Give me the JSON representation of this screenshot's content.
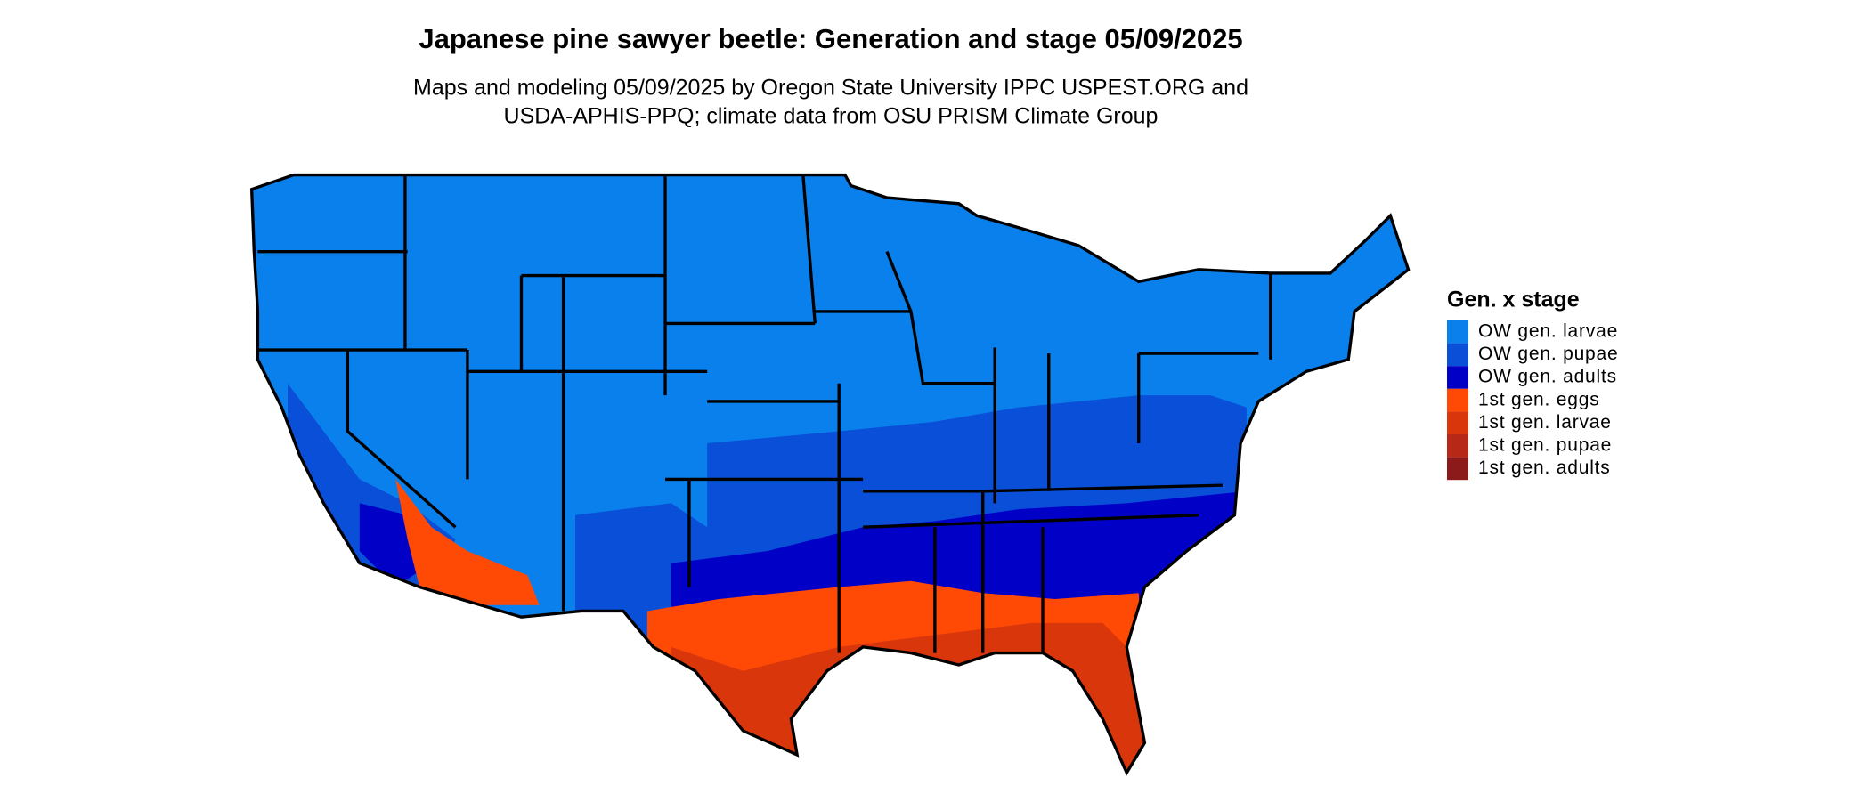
{
  "title": "Japanese pine sawyer beetle: Generation and stage 05/09/2025",
  "subtitle": [
    "Maps and modeling 05/09/2025 by Oregon State University IPPC USPEST.ORG and",
    "USDA-APHIS-PPQ; climate data from OSU PRISM Climate Group"
  ],
  "legend": {
    "title": "Gen. x stage",
    "items": [
      {
        "name": "OW gen. larvae",
        "color": "#0a80ec"
      },
      {
        "name": "OW gen. pupae",
        "color": "#0a4fd8"
      },
      {
        "name": "OW gen. adults",
        "color": "#0000c6"
      },
      {
        "name": "1st gen. eggs",
        "color": "#ff4a06"
      },
      {
        "name": "1st gen. larvae",
        "color": "#d9360b"
      },
      {
        "name": "1st gen. pupae",
        "color": "#b82816"
      },
      {
        "name": "1st gen. adults",
        "color": "#8c1a1a"
      }
    ]
  }
}
